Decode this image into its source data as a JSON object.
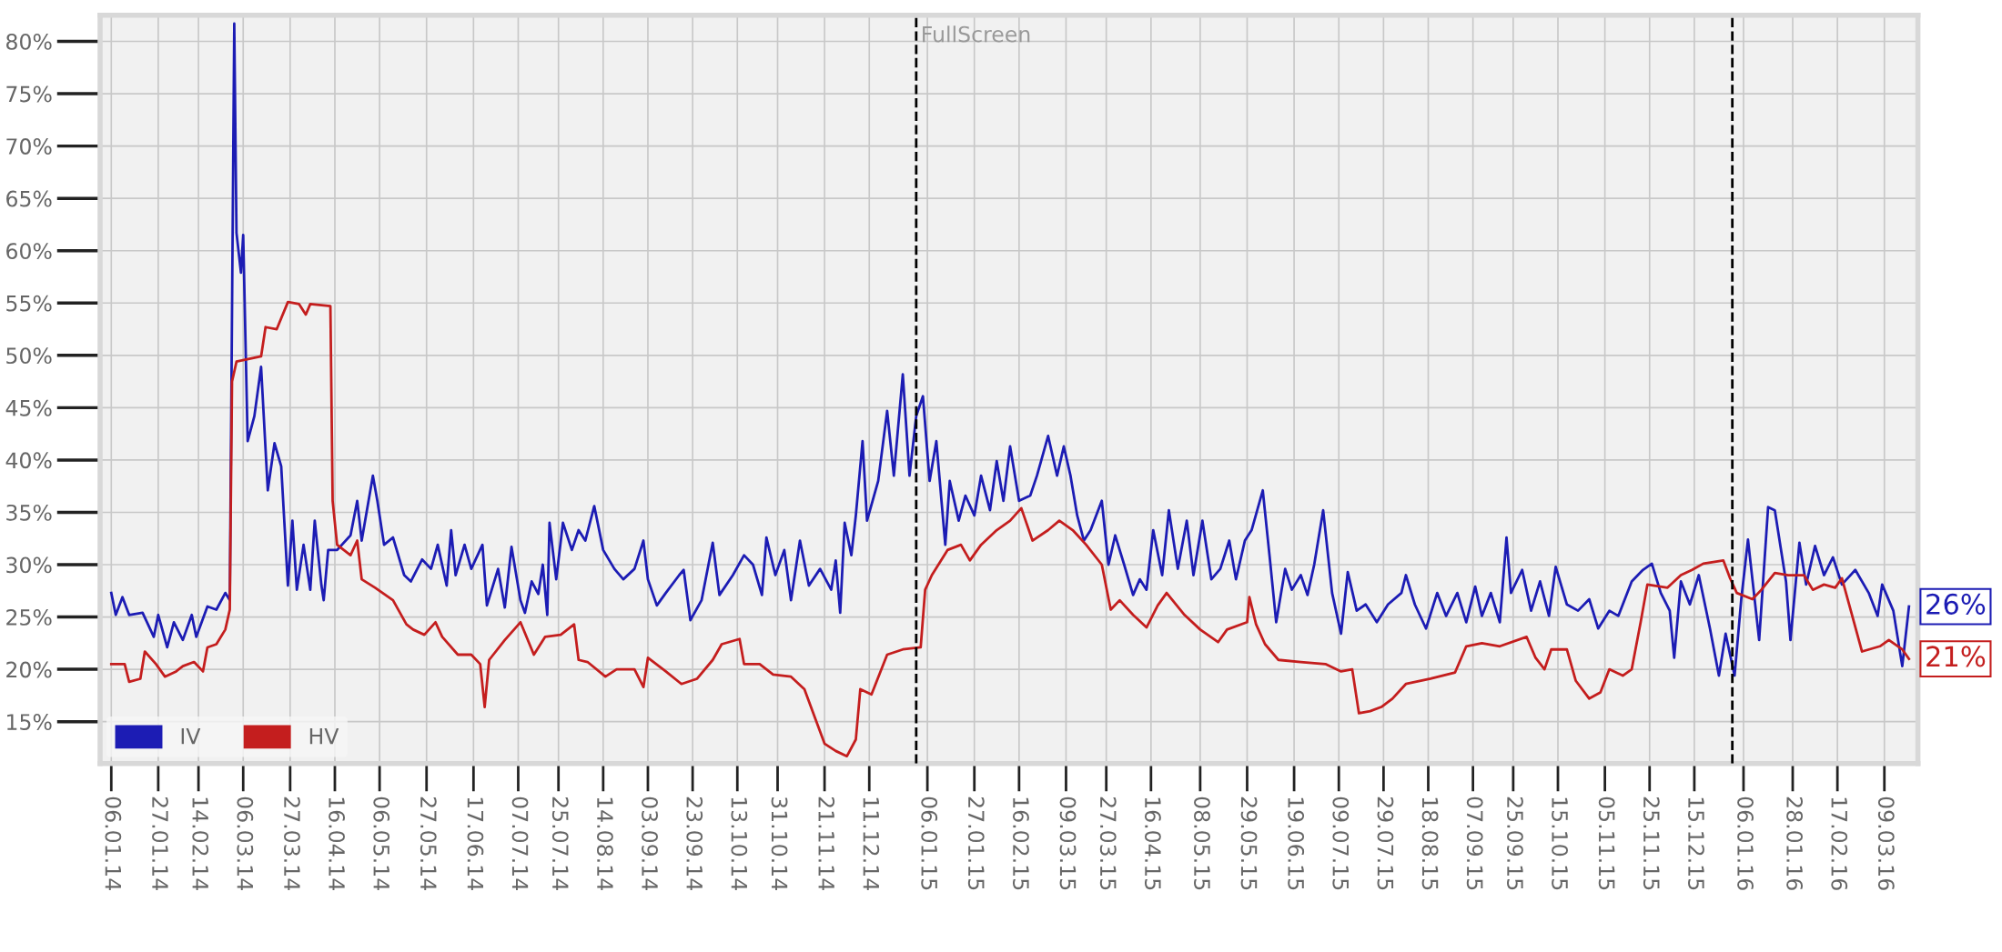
{
  "chart_data": {
    "type": "line",
    "xlim": [
      "2014-01-01",
      "2016-03-24"
    ],
    "ylim": [
      11,
      82.5
    ],
    "xticks": [
      {
        "value": "2014-01-06",
        "label": "06.01.14"
      },
      {
        "value": "2014-01-27",
        "label": "27.01.14"
      },
      {
        "value": "2014-02-14",
        "label": "14.02.14"
      },
      {
        "value": "2014-03-06",
        "label": "06.03.14"
      },
      {
        "value": "2014-03-27",
        "label": "27.03.14"
      },
      {
        "value": "2014-04-16",
        "label": "16.04.14"
      },
      {
        "value": "2014-05-06",
        "label": "06.05.14"
      },
      {
        "value": "2014-05-27",
        "label": "27.05.14"
      },
      {
        "value": "2014-06-17",
        "label": "17.06.14"
      },
      {
        "value": "2014-07-07",
        "label": "07.07.14"
      },
      {
        "value": "2014-07-25",
        "label": "25.07.14"
      },
      {
        "value": "2014-08-14",
        "label": "14.08.14"
      },
      {
        "value": "2014-09-03",
        "label": "03.09.14"
      },
      {
        "value": "2014-09-23",
        "label": "23.09.14"
      },
      {
        "value": "2014-10-13",
        "label": "13.10.14"
      },
      {
        "value": "2014-10-31",
        "label": "31.10.14"
      },
      {
        "value": "2014-11-21",
        "label": "21.11.14"
      },
      {
        "value": "2014-12-11",
        "label": "11.12.14"
      },
      {
        "value": "2015-01-06",
        "label": "06.01.15"
      },
      {
        "value": "2015-01-27",
        "label": "27.01.15"
      },
      {
        "value": "2015-02-16",
        "label": "16.02.15"
      },
      {
        "value": "2015-03-09",
        "label": "09.03.15"
      },
      {
        "value": "2015-03-27",
        "label": "27.03.15"
      },
      {
        "value": "2015-04-16",
        "label": "16.04.15"
      },
      {
        "value": "2015-05-08",
        "label": "08.05.15"
      },
      {
        "value": "2015-05-29",
        "label": "29.05.15"
      },
      {
        "value": "2015-06-19",
        "label": "19.06.15"
      },
      {
        "value": "2015-07-09",
        "label": "09.07.15"
      },
      {
        "value": "2015-07-29",
        "label": "29.07.15"
      },
      {
        "value": "2015-08-18",
        "label": "18.08.15"
      },
      {
        "value": "2015-09-07",
        "label": "07.09.15"
      },
      {
        "value": "2015-09-25",
        "label": "25.09.15"
      },
      {
        "value": "2015-10-15",
        "label": "15.10.15"
      },
      {
        "value": "2015-11-05",
        "label": "05.11.15"
      },
      {
        "value": "2015-11-25",
        "label": "25.11.15"
      },
      {
        "value": "2015-12-15",
        "label": "15.12.15"
      },
      {
        "value": "2016-01-06",
        "label": "06.01.16"
      },
      {
        "value": "2016-01-28",
        "label": "28.01.16"
      },
      {
        "value": "2016-02-17",
        "label": "17.02.16"
      },
      {
        "value": "2016-03-09",
        "label": "09.03.16"
      }
    ],
    "yticks": [
      {
        "value": 15,
        "label": "15%"
      },
      {
        "value": 20,
        "label": "20%"
      },
      {
        "value": 25,
        "label": "25%"
      },
      {
        "value": 30,
        "label": "30%"
      },
      {
        "value": 35,
        "label": "35%"
      },
      {
        "value": 40,
        "label": "40%"
      },
      {
        "value": 45,
        "label": "45%"
      },
      {
        "value": 50,
        "label": "50%"
      },
      {
        "value": 55,
        "label": "55%"
      },
      {
        "value": 60,
        "label": "60%"
      },
      {
        "value": 65,
        "label": "65%"
      },
      {
        "value": 70,
        "label": "70%"
      },
      {
        "value": 75,
        "label": "75%"
      },
      {
        "value": 80,
        "label": "80%"
      }
    ],
    "grid": true,
    "legend": "bottom left",
    "marker": "none",
    "line_style": "solid",
    "ref_lines": [
      {
        "axis": "x",
        "value": "2015-01-01",
        "color": "#000000",
        "line_style": "dashed"
      },
      {
        "axis": "x",
        "value": "2016-01-01",
        "color": "#000000",
        "line_style": "dashed"
      }
    ],
    "annotations": [
      "FullScreen",
      {
        "text": "26%",
        "x": "2016-03-20",
        "y": 26
      },
      {
        "text": "21%",
        "x": "2016-03-20",
        "y": 21
      }
    ],
    "series": [
      {
        "name": "IV",
        "color": "#1c1cb4",
        "x": [
          "2014-01-06",
          "2014-01-08",
          "2014-01-11",
          "2014-01-14",
          "2014-01-20",
          "2014-01-25",
          "2014-01-27",
          "2014-01-31",
          "2014-02-03",
          "2014-02-07",
          "2014-02-11",
          "2014-02-13",
          "2014-02-18",
          "2014-02-22",
          "2014-02-26",
          "2014-02-28",
          "2014-03-02",
          "2014-03-03",
          "2014-03-05",
          "2014-03-06",
          "2014-03-08",
          "2014-03-11",
          "2014-03-14",
          "2014-03-17",
          "2014-03-20",
          "2014-03-23",
          "2014-03-26",
          "2014-03-28",
          "2014-03-30",
          "2014-04-02",
          "2014-04-05",
          "2014-04-07",
          "2014-04-10",
          "2014-04-11",
          "2014-04-13",
          "2014-04-17",
          "2014-04-23",
          "2014-04-26",
          "2014-04-28",
          "2014-05-03",
          "2014-05-05",
          "2014-05-08",
          "2014-05-12",
          "2014-05-17",
          "2014-05-20",
          "2014-05-25",
          "2014-05-29",
          "2014-06-01",
          "2014-06-05",
          "2014-06-07",
          "2014-06-09",
          "2014-06-13",
          "2014-06-16",
          "2014-06-21",
          "2014-06-23",
          "2014-06-28",
          "2014-07-01",
          "2014-07-04",
          "2014-07-08",
          "2014-07-10",
          "2014-07-13",
          "2014-07-16",
          "2014-07-18",
          "2014-07-20",
          "2014-07-21",
          "2014-07-24",
          "2014-07-27",
          "2014-07-31",
          "2014-08-03",
          "2014-08-06",
          "2014-08-10",
          "2014-08-14",
          "2014-08-19",
          "2014-08-23",
          "2014-08-28",
          "2014-09-01",
          "2014-09-03",
          "2014-09-07",
          "2014-09-11",
          "2014-09-17",
          "2014-09-19",
          "2014-09-22",
          "2014-09-27",
          "2014-10-02",
          "2014-10-05",
          "2014-10-11",
          "2014-10-16",
          "2014-10-20",
          "2014-10-24",
          "2014-10-26",
          "2014-10-30",
          "2014-11-03",
          "2014-11-06",
          "2014-11-10",
          "2014-11-14",
          "2014-11-19",
          "2014-11-24",
          "2014-11-26",
          "2014-11-28",
          "2014-11-30",
          "2014-12-03",
          "2014-12-05",
          "2014-12-08",
          "2014-12-10",
          "2014-12-15",
          "2014-12-19",
          "2014-12-22",
          "2014-12-26",
          "2014-12-29",
          "2015-01-01",
          "2015-01-04",
          "2015-01-07",
          "2015-01-10",
          "2015-01-14",
          "2015-01-16",
          "2015-01-20",
          "2015-01-23",
          "2015-01-27",
          "2015-01-30",
          "2015-02-03",
          "2015-02-06",
          "2015-02-09",
          "2015-02-12",
          "2015-02-16",
          "2015-02-21",
          "2015-02-24",
          "2015-03-01",
          "2015-03-05",
          "2015-03-08",
          "2015-03-11",
          "2015-03-14",
          "2015-03-17",
          "2015-03-20",
          "2015-03-25",
          "2015-03-28",
          "2015-03-31",
          "2015-04-04",
          "2015-04-08",
          "2015-04-11",
          "2015-04-14",
          "2015-04-17",
          "2015-04-21",
          "2015-04-24",
          "2015-04-28",
          "2015-05-02",
          "2015-05-05",
          "2015-05-09",
          "2015-05-13",
          "2015-05-17",
          "2015-05-21",
          "2015-05-24",
          "2015-05-28",
          "2015-05-31",
          "2015-06-05",
          "2015-06-08",
          "2015-06-11",
          "2015-06-15",
          "2015-06-18",
          "2015-06-22",
          "2015-06-25",
          "2015-06-28",
          "2015-07-02",
          "2015-07-06",
          "2015-07-10",
          "2015-07-13",
          "2015-07-17",
          "2015-07-21",
          "2015-07-26",
          "2015-07-31",
          "2015-08-06",
          "2015-08-08",
          "2015-08-12",
          "2015-08-17",
          "2015-08-22",
          "2015-08-26",
          "2015-08-31",
          "2015-09-04",
          "2015-09-08",
          "2015-09-11",
          "2015-09-15",
          "2015-09-19",
          "2015-09-22",
          "2015-09-24",
          "2015-09-29",
          "2015-10-03",
          "2015-10-07",
          "2015-10-11",
          "2015-10-14",
          "2015-10-19",
          "2015-10-24",
          "2015-10-29",
          "2015-11-02",
          "2015-11-07",
          "2015-11-11",
          "2015-11-17",
          "2015-11-22",
          "2015-11-26",
          "2015-11-30",
          "2015-12-04",
          "2015-12-06",
          "2015-12-09",
          "2015-12-13",
          "2015-12-17",
          "2015-12-22",
          "2015-12-26",
          "2015-12-29",
          "2016-01-02",
          "2016-01-05",
          "2016-01-08",
          "2016-01-13",
          "2016-01-17",
          "2016-01-20",
          "2016-01-25",
          "2016-01-27",
          "2016-01-31",
          "2016-02-03",
          "2016-02-07",
          "2016-02-11",
          "2016-02-15",
          "2016-02-19",
          "2016-02-25",
          "2016-03-02",
          "2016-03-06",
          "2016-03-08",
          "2016-03-13",
          "2016-03-17",
          "2016-03-20"
        ],
        "values": [
          27.3,
          25.2,
          26.9,
          25.2,
          25.4,
          23.1,
          25.2,
          22.1,
          24.5,
          22.8,
          25.2,
          23.1,
          26,
          25.7,
          27.3,
          26.6,
          81.7,
          61.7,
          57.9,
          61.5,
          41.8,
          44.2,
          48.9,
          37.1,
          41.6,
          39.4,
          28,
          34.2,
          27.6,
          31.9,
          27.6,
          34.2,
          28,
          26.6,
          31.4,
          31.4,
          32.8,
          36.1,
          32.3,
          38.5,
          36.1,
          31.9,
          32.6,
          29,
          28.4,
          30.5,
          29.6,
          31.9,
          28,
          33.3,
          29,
          31.9,
          29.6,
          31.9,
          26.1,
          29.6,
          25.9,
          31.7,
          26.6,
          25.4,
          28.4,
          27.2,
          30,
          25.2,
          34,
          28.6,
          34,
          31.4,
          33.3,
          32.3,
          35.6,
          31.4,
          29.6,
          28.6,
          29.6,
          32.3,
          28.6,
          26.1,
          27.3,
          29,
          29.5,
          24.7,
          26.6,
          32.1,
          27.1,
          29,
          30.9,
          30,
          27.1,
          32.6,
          29,
          31.4,
          26.6,
          32.3,
          28,
          29.6,
          27.6,
          30.4,
          25.4,
          34,
          30.9,
          34.7,
          41.8,
          34.2,
          38,
          44.7,
          38.5,
          48.2,
          38.5,
          44.2,
          46.1,
          38,
          41.8,
          31.9,
          38,
          34.2,
          36.6,
          34.7,
          38.5,
          35.2,
          39.9,
          36.1,
          41.3,
          36.1,
          36.6,
          38.5,
          42.3,
          38.5,
          41.3,
          38.5,
          34.7,
          32.3,
          33.3,
          36.1,
          30,
          32.8,
          30,
          27.1,
          28.6,
          27.6,
          33.3,
          29,
          35.2,
          29.6,
          34.2,
          29,
          34.2,
          28.6,
          29.6,
          32.3,
          28.6,
          32.3,
          33.3,
          37.1,
          30.9,
          24.5,
          29.6,
          27.6,
          29,
          27.1,
          30,
          35.2,
          27.3,
          23.4,
          29.3,
          25.6,
          26.2,
          24.5,
          26.2,
          27.3,
          29,
          26.2,
          23.9,
          27.3,
          25.1,
          27.3,
          24.5,
          27.9,
          25.1,
          27.3,
          24.5,
          32.6,
          27.3,
          29.5,
          25.6,
          28.4,
          25.1,
          29.8,
          26.2,
          25.6,
          26.7,
          23.9,
          25.6,
          25.1,
          28.4,
          29.5,
          30.1,
          27.3,
          25.6,
          21.1,
          28.4,
          26.2,
          29,
          23.9,
          19.4,
          23.4,
          19.4,
          26.7,
          32.4,
          22.8,
          35.5,
          35.2,
          28.4,
          22.8,
          32.1,
          28.1,
          31.8,
          29,
          30.7,
          28.1,
          29.5,
          27.3,
          25.1,
          28.1,
          25.6,
          20.3,
          26
        ]
      },
      {
        "name": "HV",
        "color": "#c41e1e",
        "x": [
          "2014-01-06",
          "2014-01-12",
          "2014-01-14",
          "2014-01-19",
          "2014-01-21",
          "2014-01-26",
          "2014-01-30",
          "2014-02-04",
          "2014-02-07",
          "2014-02-12",
          "2014-02-16",
          "2014-02-18",
          "2014-02-22",
          "2014-02-26",
          "2014-02-28",
          "2014-03-01",
          "2014-03-03",
          "2014-03-14",
          "2014-03-16",
          "2014-03-21",
          "2014-03-26",
          "2014-03-31",
          "2014-04-03",
          "2014-04-05",
          "2014-04-14",
          "2014-04-15",
          "2014-04-17",
          "2014-04-23",
          "2014-04-26",
          "2014-04-28",
          "2014-05-04",
          "2014-05-12",
          "2014-05-18",
          "2014-05-21",
          "2014-05-26",
          "2014-05-31",
          "2014-06-03",
          "2014-06-10",
          "2014-06-16",
          "2014-06-20",
          "2014-06-22",
          "2014-06-24",
          "2014-07-01",
          "2014-07-08",
          "2014-07-14",
          "2014-07-19",
          "2014-07-26",
          "2014-08-01",
          "2014-08-03",
          "2014-08-07",
          "2014-08-15",
          "2014-08-20",
          "2014-08-28",
          "2014-09-01",
          "2014-09-03",
          "2014-09-11",
          "2014-09-18",
          "2014-09-25",
          "2014-10-02",
          "2014-10-06",
          "2014-10-14",
          "2014-10-16",
          "2014-10-23",
          "2014-10-29",
          "2014-11-06",
          "2014-11-12",
          "2014-11-17",
          "2014-11-21",
          "2014-11-26",
          "2014-12-01",
          "2014-12-05",
          "2014-12-07",
          "2014-12-12",
          "2014-12-19",
          "2014-12-26",
          "2015-01-03",
          "2015-01-05",
          "2015-01-08",
          "2015-01-15",
          "2015-01-21",
          "2015-01-25",
          "2015-01-30",
          "2015-02-06",
          "2015-02-12",
          "2015-02-17",
          "2015-02-22",
          "2015-03-01",
          "2015-03-06",
          "2015-03-12",
          "2015-03-18",
          "2015-03-25",
          "2015-03-29",
          "2015-04-02",
          "2015-04-08",
          "2015-04-14",
          "2015-04-19",
          "2015-04-23",
          "2015-05-01",
          "2015-05-08",
          "2015-05-16",
          "2015-05-20",
          "2015-05-29",
          "2015-05-30",
          "2015-06-02",
          "2015-06-06",
          "2015-06-12",
          "2015-06-22",
          "2015-07-03",
          "2015-07-10",
          "2015-07-15",
          "2015-07-18",
          "2015-07-23",
          "2015-07-28",
          "2015-08-02",
          "2015-08-08",
          "2015-08-19",
          "2015-08-30",
          "2015-09-04",
          "2015-09-11",
          "2015-09-19",
          "2015-10-01",
          "2015-10-05",
          "2015-10-09",
          "2015-10-12",
          "2015-10-19",
          "2015-10-23",
          "2015-10-29",
          "2015-11-03",
          "2015-11-07",
          "2015-11-13",
          "2015-11-17",
          "2015-11-21",
          "2015-11-24",
          "2015-12-03",
          "2015-12-09",
          "2015-12-14",
          "2015-12-19",
          "2015-12-28",
          "2015-12-31",
          "2016-01-03",
          "2016-01-10",
          "2016-01-14",
          "2016-01-20",
          "2016-01-26",
          "2016-02-02",
          "2016-02-06",
          "2016-02-11",
          "2016-02-16",
          "2016-02-19",
          "2016-02-23",
          "2016-02-28",
          "2016-03-07",
          "2016-03-11",
          "2016-03-17",
          "2016-03-20"
        ],
        "values": [
          20.5,
          20.5,
          18.8,
          19.1,
          21.7,
          20.5,
          19.3,
          19.8,
          20.3,
          20.7,
          19.8,
          22.1,
          22.4,
          23.8,
          25.7,
          47.5,
          49.4,
          49.9,
          52.7,
          52.5,
          55.1,
          54.9,
          53.9,
          54.9,
          54.7,
          36.1,
          31.9,
          30.9,
          32.3,
          28.6,
          27.8,
          26.6,
          24.3,
          23.8,
          23.3,
          24.5,
          23.1,
          21.4,
          21.4,
          20.5,
          16.4,
          20.9,
          22.8,
          24.5,
          21.4,
          23.1,
          23.3,
          24.3,
          20.9,
          20.7,
          19.3,
          20,
          20,
          18.3,
          21.1,
          19.8,
          18.6,
          19.1,
          20.9,
          22.4,
          22.9,
          20.5,
          20.5,
          19.5,
          19.3,
          18.1,
          15.2,
          12.9,
          12.2,
          11.7,
          13.3,
          18.1,
          17.6,
          21.4,
          21.9,
          22.1,
          27.6,
          29,
          31.4,
          31.9,
          30.4,
          31.9,
          33.3,
          34.2,
          35.4,
          32.3,
          33.3,
          34.2,
          33.3,
          31.9,
          30,
          25.7,
          26.6,
          25.2,
          24,
          26.1,
          27.3,
          25.2,
          23.8,
          22.6,
          23.8,
          24.5,
          26.9,
          24.3,
          22.4,
          20.9,
          20.7,
          20.5,
          19.8,
          20,
          15.8,
          16,
          16.4,
          17.2,
          18.6,
          19.1,
          19.7,
          22.2,
          22.5,
          22.2,
          23.1,
          21.1,
          20,
          21.9,
          21.9,
          18.9,
          17.2,
          17.8,
          20,
          19.4,
          20,
          24.5,
          28.1,
          27.8,
          29,
          29.5,
          30.1,
          30.4,
          28.7,
          27.3,
          26.7,
          27.6,
          29.2,
          29,
          29,
          27.6,
          28.1,
          27.8,
          28.7,
          25.6,
          21.7,
          22.2,
          22.8,
          21.9,
          21
        ]
      }
    ]
  }
}
